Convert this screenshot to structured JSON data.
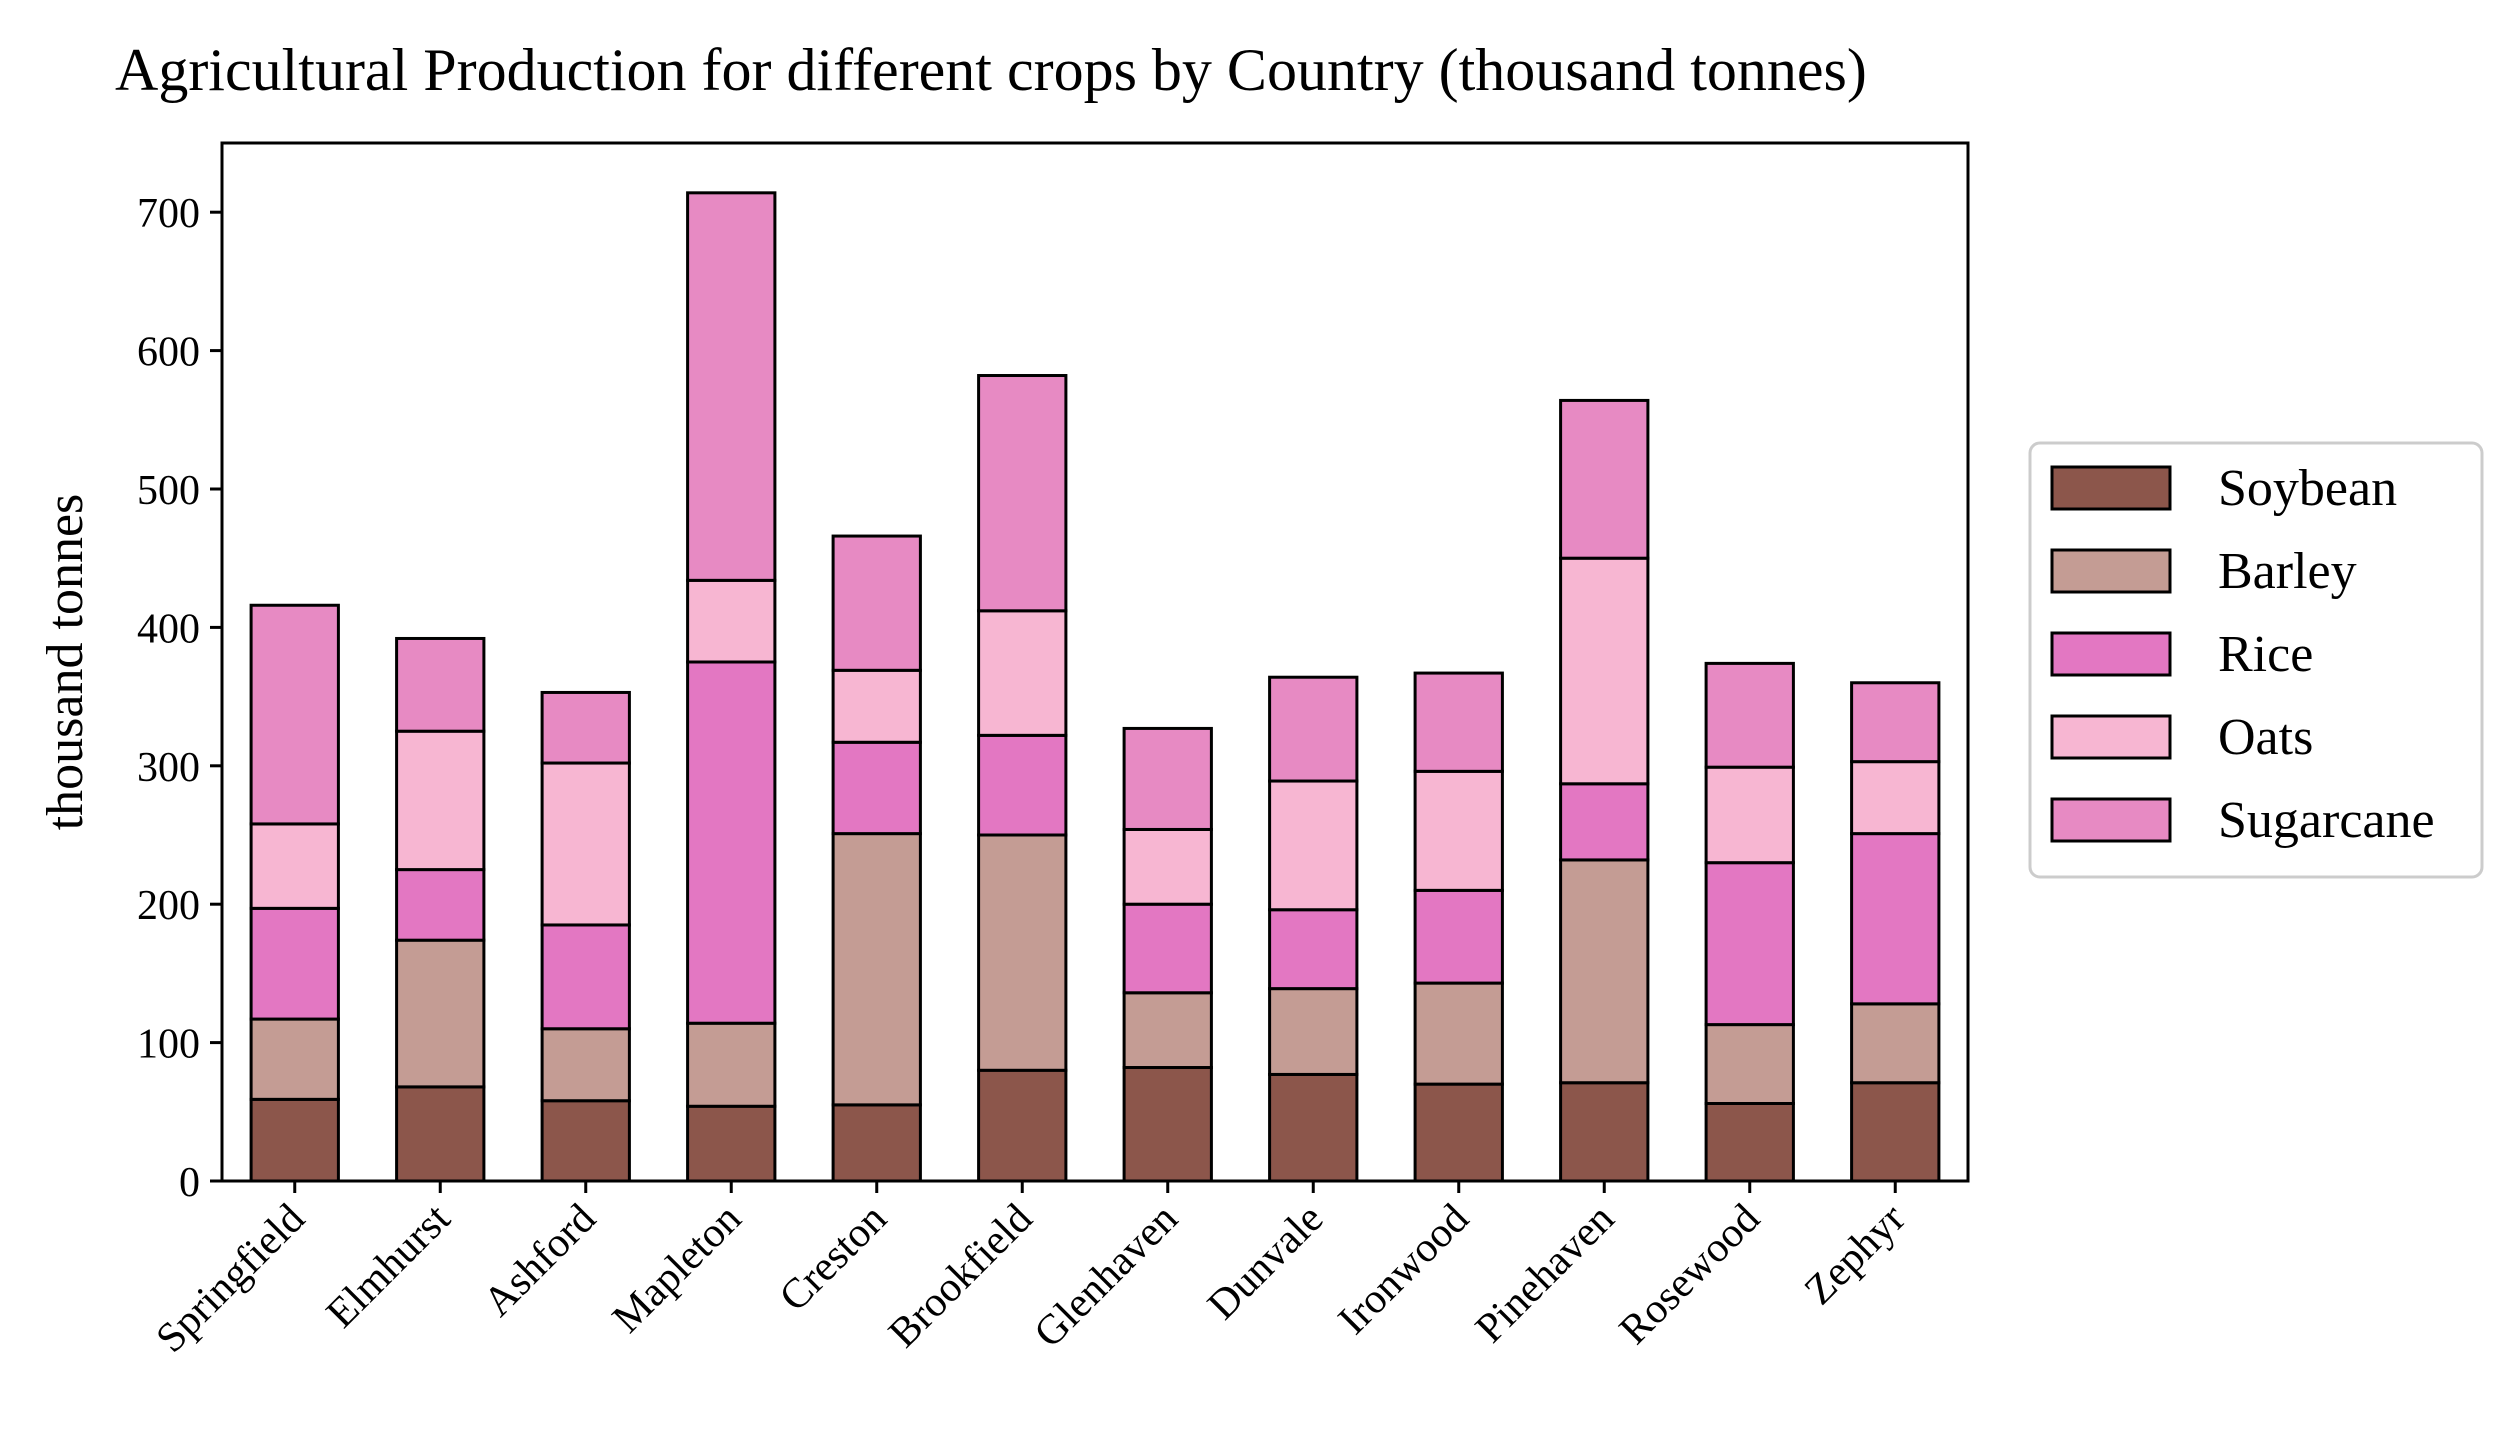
{
  "chart_data": {
    "type": "bar",
    "stacked": true,
    "title": "Agricultural Production for different crops by Country (thousand tonnes)",
    "xlabel": "",
    "ylabel": "thousand tonnes",
    "ylim": [
      0,
      750
    ],
    "yticks": [
      0,
      100,
      200,
      300,
      400,
      500,
      600,
      700
    ],
    "legend_position": "right",
    "categories": [
      "Springfield",
      "Elmhurst",
      "Ashford",
      "Mapleton",
      "Creston",
      "Brookfield",
      "Glenhaven",
      "Dunvale",
      "Ironwood",
      "Pinehaven",
      "Rosewood",
      "Zephyr"
    ],
    "series": [
      {
        "name": "Soybean",
        "color": "#8c564b",
        "values": [
          59,
          68,
          58,
          54,
          55,
          80,
          82,
          77,
          70,
          71,
          56,
          71
        ]
      },
      {
        "name": "Barley",
        "color": "#c49c94",
        "values": [
          58,
          106,
          52,
          60,
          196,
          170,
          54,
          62,
          73,
          161,
          57,
          57
        ]
      },
      {
        "name": "Rice",
        "color": "#e377c2",
        "values": [
          80,
          51,
          75,
          261,
          66,
          72,
          64,
          57,
          67,
          55,
          117,
          123
        ]
      },
      {
        "name": "Oats",
        "color": "#f7b6d2",
        "values": [
          61,
          100,
          117,
          59,
          52,
          90,
          54,
          93,
          86,
          163,
          69,
          52
        ]
      },
      {
        "name": "Sugarcane",
        "color": "#e78ac3",
        "values": [
          158,
          67,
          51,
          280,
          97,
          170,
          73,
          75,
          71,
          114,
          75,
          57
        ]
      }
    ]
  }
}
